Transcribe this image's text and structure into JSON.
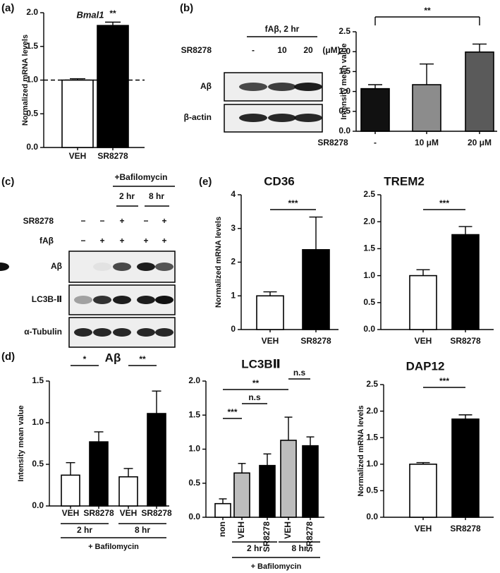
{
  "panel_labels": [
    "(a)",
    "(b)",
    "(c)",
    "(d)",
    "(e)"
  ],
  "blot_b": {
    "header": "fAβ, 2 hr",
    "row_label": "SR8278",
    "doses": [
      "-",
      "10",
      "20"
    ],
    "unit": "(μM)",
    "bands": [
      "Aβ",
      "β-actin"
    ]
  },
  "blot_c": {
    "header": "+Bafilomycin",
    "times": [
      "2 hr",
      "8 hr"
    ],
    "rows": [
      {
        "label": "SR8278",
        "signs": [
          "−",
          "−",
          "+",
          "−",
          "+"
        ]
      },
      {
        "label": "fAβ",
        "signs": [
          "−",
          "+",
          "+",
          "+",
          "+"
        ]
      }
    ],
    "bands": [
      "Aβ",
      "LC3B-Ⅱ",
      "α-Tubulin"
    ]
  },
  "chart_data": [
    {
      "type": "bar",
      "title": "Bmal1",
      "y_label": "Normalized mRNA levels",
      "categories": [
        "VEH",
        "SR8278"
      ],
      "values": [
        1.0,
        1.81
      ],
      "errors": [
        0.02,
        0.05
      ],
      "colors": [
        "#ffffff",
        "#000000"
      ],
      "hline": 1,
      "ylim": [
        0,
        2
      ],
      "yticks": [
        {
          "value": 0,
          "label": "0.0"
        },
        0.5,
        {
          "value": 1,
          "label": "1.0"
        },
        1.5,
        {
          "value": 2,
          "label": "2.0"
        }
      ],
      "significance": [
        {
          "from": 1,
          "to": 1,
          "label": "**"
        }
      ]
    },
    {
      "type": "bar",
      "y_label": "Intensity mean value",
      "x_label": "SR8278",
      "categories": [
        "-",
        "10 μM",
        "20 μM"
      ],
      "values": [
        1.07,
        1.17,
        1.99
      ],
      "errors": [
        0.1,
        0.52,
        0.2
      ],
      "colors": [
        "#111111",
        "#8c8c8c",
        "#5a5a5a"
      ],
      "ylim": [
        0,
        2.5
      ],
      "yticks": [
        {
          "value": 0,
          "label": "0.0"
        },
        0.5,
        {
          "value": 1,
          "label": "1.0"
        },
        1.5,
        {
          "value": 2,
          "label": "2.0"
        },
        2.5
      ],
      "significance": [
        {
          "from": 0,
          "to": 2,
          "label": "**"
        }
      ]
    },
    {
      "type": "bar",
      "title": "CD36",
      "y_label": "Normalized mRNA levels",
      "categories": [
        "VEH",
        "SR8278"
      ],
      "values": [
        1.0,
        2.37
      ],
      "errors": [
        0.12,
        0.97
      ],
      "colors": [
        "#ffffff",
        "#000000"
      ],
      "ylim": [
        0,
        4
      ],
      "yticks": [
        0,
        1,
        2,
        3,
        4
      ],
      "significance": [
        {
          "from": 0,
          "to": 1,
          "label": "***"
        }
      ]
    },
    {
      "type": "bar",
      "title": "TREM2",
      "categories": [
        "VEH",
        "SR8278"
      ],
      "values": [
        1.0,
        1.76
      ],
      "errors": [
        0.11,
        0.15
      ],
      "colors": [
        "#ffffff",
        "#000000"
      ],
      "ylim": [
        0,
        2.5
      ],
      "yticks": [
        {
          "value": 0,
          "label": "0.0"
        },
        0.5,
        {
          "value": 1,
          "label": "1.0"
        },
        1.5,
        {
          "value": 2,
          "label": "2.0"
        },
        2.5
      ],
      "significance": [
        {
          "from": 0,
          "to": 1,
          "label": "***"
        }
      ]
    },
    {
      "type": "bar",
      "title": "Aβ",
      "y_label": "Intensity mean value",
      "categories": [
        "VEH",
        "SR8278",
        "VEH",
        "SR8278"
      ],
      "values": [
        0.37,
        0.77,
        0.35,
        1.11
      ],
      "errors": [
        0.15,
        0.12,
        0.1,
        0.27
      ],
      "colors": [
        "#ffffff",
        "#000000",
        "#ffffff",
        "#000000"
      ],
      "ylim": [
        0,
        1.5
      ],
      "yticks": [
        {
          "value": 0,
          "label": "0.0"
        },
        0.5,
        {
          "value": 1,
          "label": "1.0"
        },
        1.5
      ],
      "significance": [
        {
          "from": 0,
          "to": 1,
          "label": "*"
        },
        {
          "from": 2,
          "to": 3,
          "label": "**"
        }
      ],
      "groups": [
        {
          "label": "2 hr",
          "from": 0,
          "to": 1
        },
        {
          "label": "8 hr",
          "from": 2,
          "to": 3
        }
      ],
      "group_title": "+ Bafilomycin"
    },
    {
      "type": "bar",
      "title": "LC3BⅡ",
      "categories": [
        "non",
        "VEH",
        "SR8278",
        "VEH",
        "SR8278"
      ],
      "values": [
        0.2,
        0.65,
        0.76,
        1.13,
        1.05
      ],
      "errors": [
        0.07,
        0.14,
        0.17,
        0.34,
        0.13
      ],
      "colors": [
        "#ffffff",
        "#bdbdbd",
        "#000000",
        "#bdbdbd",
        "#000000"
      ],
      "ylim": [
        0,
        2
      ],
      "yticks": [
        {
          "value": 0,
          "label": "0.0"
        },
        0.5,
        {
          "value": 1,
          "label": "1.0"
        },
        1.5,
        {
          "value": 2,
          "label": "2.0"
        }
      ],
      "significance": [
        {
          "from": 0,
          "to": 1,
          "label": "***"
        },
        {
          "from": 1,
          "to": 2,
          "label": "n.s"
        },
        {
          "from": 0,
          "to": 3,
          "label": "**"
        },
        {
          "from": 3,
          "to": 4,
          "label": "n.s"
        }
      ],
      "groups": [
        {
          "label": "2 hr",
          "from": 1,
          "to": 2
        },
        {
          "label": "8 hr",
          "from": 3,
          "to": 4
        }
      ],
      "group_title": "+ Bafilomycin"
    },
    {
      "type": "bar",
      "title": "DAP12",
      "y_label": "Normalized mRNA levels",
      "categories": [
        "VEH",
        "SR8278"
      ],
      "values": [
        1.0,
        1.85
      ],
      "errors": [
        0.03,
        0.08
      ],
      "colors": [
        "#ffffff",
        "#000000"
      ],
      "ylim": [
        0,
        2.5
      ],
      "yticks": [
        {
          "value": 0,
          "label": "0.0"
        },
        0.5,
        {
          "value": 1,
          "label": "1.0"
        },
        1.5,
        {
          "value": 2,
          "label": "2.0"
        },
        2.5
      ],
      "significance": [
        {
          "from": 0,
          "to": 1,
          "label": "***"
        }
      ]
    }
  ]
}
